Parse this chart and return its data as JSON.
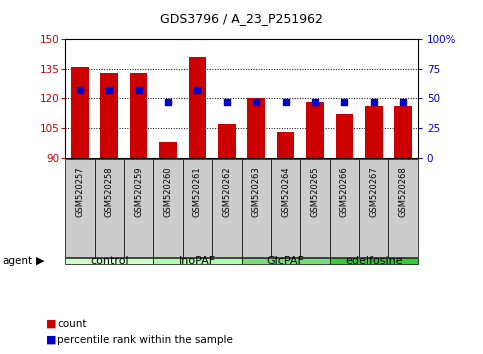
{
  "title": "GDS3796 / A_23_P251962",
  "samples": [
    "GSM520257",
    "GSM520258",
    "GSM520259",
    "GSM520260",
    "GSM520261",
    "GSM520262",
    "GSM520263",
    "GSM520264",
    "GSM520265",
    "GSM520266",
    "GSM520267",
    "GSM520268"
  ],
  "bar_values": [
    136,
    133,
    133,
    98,
    141,
    107,
    120,
    103,
    118,
    112,
    116,
    116
  ],
  "percentile_values": [
    57,
    57,
    57,
    47,
    57,
    47,
    47,
    47,
    47,
    47,
    47,
    47
  ],
  "bar_bottom": 90,
  "ylim_left": [
    90,
    150
  ],
  "ylim_right": [
    0,
    100
  ],
  "yticks_left": [
    90,
    105,
    120,
    135,
    150
  ],
  "yticks_right": [
    0,
    25,
    50,
    75,
    100
  ],
  "yticklabels_right": [
    "0",
    "25",
    "50",
    "75",
    "100%"
  ],
  "bar_color": "#cc0000",
  "dot_color": "#0000cc",
  "groups": [
    {
      "label": "control",
      "start": 0,
      "end": 3
    },
    {
      "label": "InoPAF",
      "start": 3,
      "end": 6
    },
    {
      "label": "GlcPAF",
      "start": 6,
      "end": 9
    },
    {
      "label": "edelfosine",
      "start": 9,
      "end": 12
    }
  ],
  "group_colors": [
    "#ccffcc",
    "#aaffaa",
    "#77dd77",
    "#33cc33"
  ],
  "agent_label": "agent",
  "legend_count_label": "count",
  "legend_pct_label": "percentile rank within the sample",
  "left_tick_color": "#cc0000",
  "right_tick_color": "#0000cc",
  "bar_width": 0.6,
  "sample_box_color": "#cccccc",
  "gridline_ticks": [
    105,
    120,
    135
  ]
}
